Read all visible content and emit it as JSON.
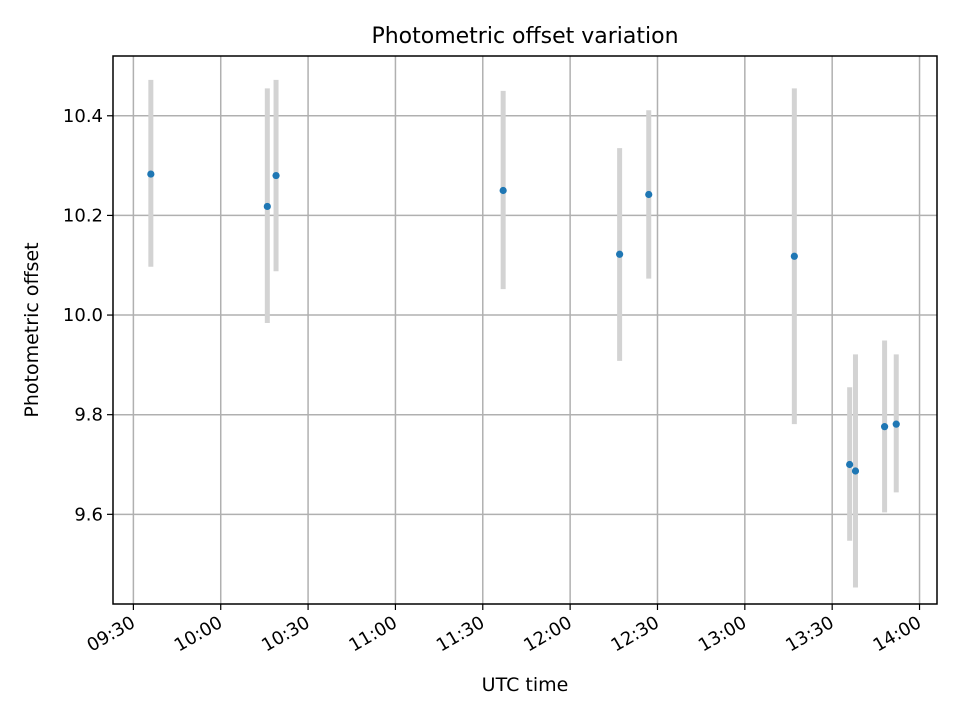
{
  "chart_data": {
    "type": "scatter",
    "title": "Photometric offset variation",
    "xlabel": "UTC time",
    "ylabel": "Photometric offset",
    "x_ticks": [
      "09:30",
      "10:00",
      "10:30",
      "11:00",
      "11:30",
      "12:00",
      "12:30",
      "13:00",
      "13:30",
      "14:00"
    ],
    "y_ticks": [
      "9.6",
      "9.8",
      "10.0",
      "10.2",
      "10.4"
    ],
    "xlim": [
      "09:23",
      "14:06"
    ],
    "ylim": [
      9.42,
      10.52
    ],
    "grid": true,
    "points": [
      {
        "x": "09:36",
        "y": 10.283,
        "err_low": 10.097,
        "err_high": 10.472
      },
      {
        "x": "10:16",
        "y": 10.218,
        "err_low": 9.984,
        "err_high": 10.455
      },
      {
        "x": "10:19",
        "y": 10.28,
        "err_low": 10.088,
        "err_high": 10.472
      },
      {
        "x": "11:37",
        "y": 10.25,
        "err_low": 10.052,
        "err_high": 10.45
      },
      {
        "x": "12:17",
        "y": 10.122,
        "err_low": 9.908,
        "err_high": 10.335
      },
      {
        "x": "12:27",
        "y": 10.242,
        "err_low": 10.073,
        "err_high": 10.411
      },
      {
        "x": "13:17",
        "y": 10.118,
        "err_low": 9.781,
        "err_high": 10.455
      },
      {
        "x": "13:36",
        "y": 9.7,
        "err_low": 9.547,
        "err_high": 9.855
      },
      {
        "x": "13:38",
        "y": 9.687,
        "err_low": 9.453,
        "err_high": 9.921
      },
      {
        "x": "13:48",
        "y": 9.776,
        "err_low": 9.604,
        "err_high": 9.949
      },
      {
        "x": "13:52",
        "y": 9.781,
        "err_low": 9.644,
        "err_high": 9.921
      }
    ]
  }
}
